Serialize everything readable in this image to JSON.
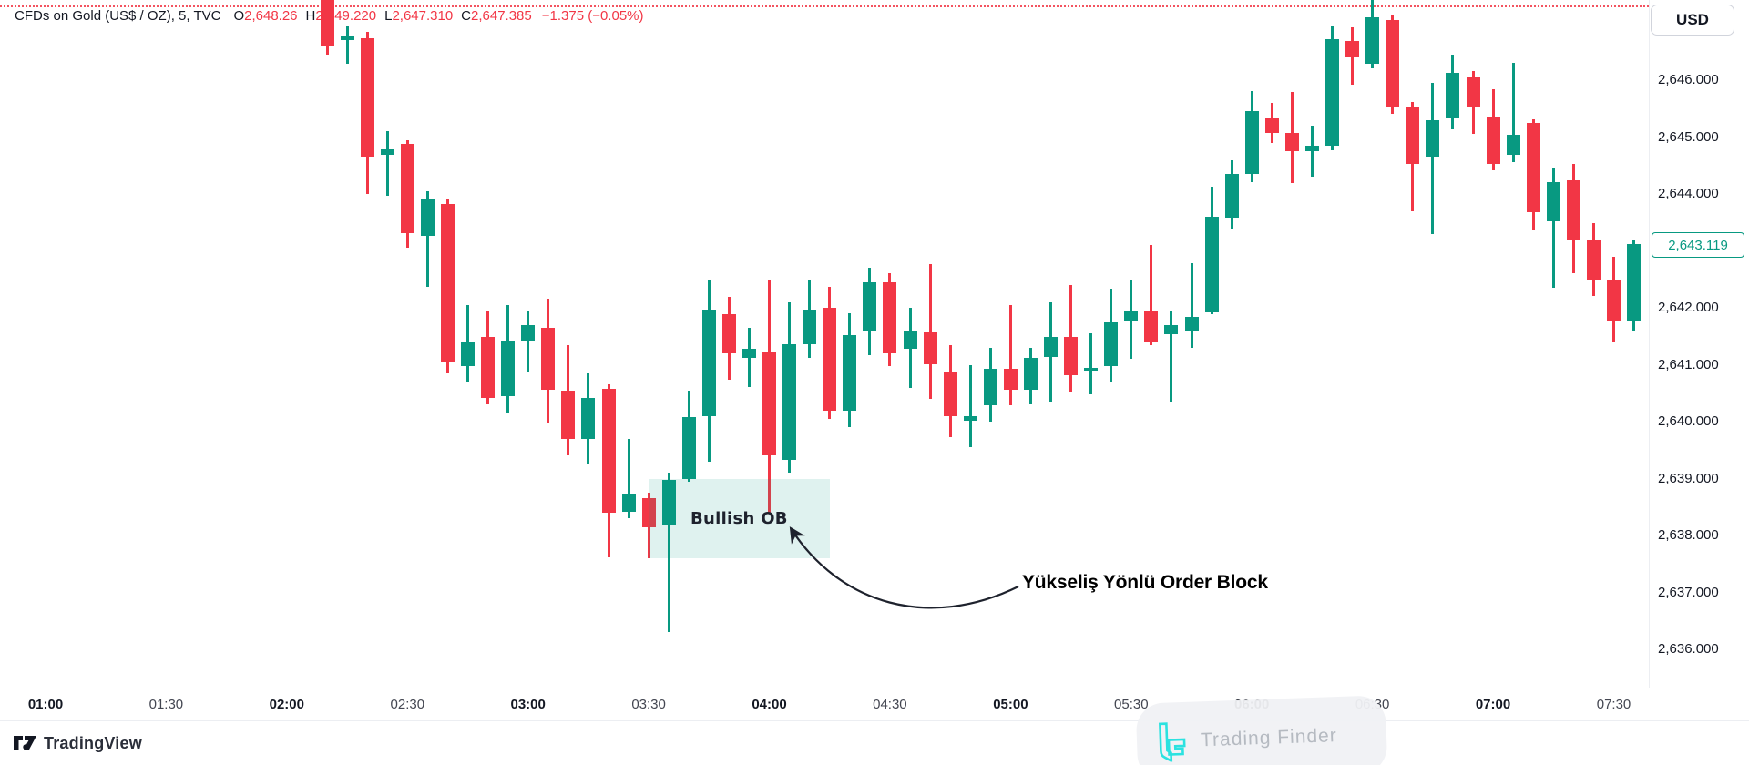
{
  "header": {
    "symbol_title": "CFDs on Gold (US$ / OZ), 5, TVC",
    "ohlc": {
      "o_label": "O",
      "o_value": "2,648.26",
      "h_label": "H",
      "h_value": "2,649.220",
      "l_label": "L",
      "l_value": "2,647.310",
      "c_label": "C",
      "c_value": "2,647.385",
      "change": "−1.375 (−0.05%)"
    }
  },
  "currency_badge": "USD",
  "price_axis": {
    "labels": [
      "2,646.000",
      "2,645.000",
      "2,644.000",
      "2,643.000",
      "2,642.000",
      "2,641.000",
      "2,640.000",
      "2,639.000",
      "2,638.000",
      "2,637.000",
      "2,636.000"
    ],
    "current_price_label": "2,643.119"
  },
  "time_axis": {
    "labels": [
      {
        "text": "01:00",
        "bold": true
      },
      {
        "text": "01:30",
        "bold": false
      },
      {
        "text": "02:00",
        "bold": true
      },
      {
        "text": "02:30",
        "bold": false
      },
      {
        "text": "03:00",
        "bold": true
      },
      {
        "text": "03:30",
        "bold": false
      },
      {
        "text": "04:00",
        "bold": true
      },
      {
        "text": "04:30",
        "bold": false
      },
      {
        "text": "05:00",
        "bold": true
      },
      {
        "text": "05:30",
        "bold": false
      },
      {
        "text": "06:00",
        "bold": true
      },
      {
        "text": "06:30",
        "bold": false
      },
      {
        "text": "07:00",
        "bold": true
      },
      {
        "text": "07:30",
        "bold": false
      }
    ]
  },
  "annotations": {
    "callout_text": "Yükseliş Yönlü Order Block"
  },
  "footer": {
    "tradingview_label": "TradingView"
  },
  "watermark": {
    "text": "Trading Finder",
    "logo_color": "#2be2e0"
  },
  "colors": {
    "up": "#089981",
    "down": "#f23645",
    "reference_line": "#f23645",
    "current_price": "#089981",
    "order_block_fill": "rgba(8,153,129,0.13)"
  },
  "chart_data": {
    "type": "candlestick",
    "title": "CFDs on Gold (US$ / OZ), 5, TVC",
    "interval_minutes": 5,
    "ylabel": "USD",
    "ylim": [
      2635.3,
      2647.4
    ],
    "grid": false,
    "current_price": 2643.119,
    "reference_line": {
      "price": 2647.31,
      "style": "dotted"
    },
    "order_block": {
      "label": "Bullish OB",
      "t_start": "03:30",
      "t_end": "04:15",
      "price_top": 2639.0,
      "price_bottom": 2637.6
    },
    "candles": [
      [
        "02:10",
        2648.3,
        2649.0,
        2646.45,
        2646.6
      ],
      [
        "02:15",
        2646.7,
        2646.95,
        2646.28,
        2646.77
      ],
      [
        "02:20",
        2646.74,
        2646.85,
        2644.0,
        2644.65
      ],
      [
        "02:25",
        2644.68,
        2645.1,
        2643.97,
        2644.78
      ],
      [
        "02:30",
        2644.88,
        2644.95,
        2643.05,
        2643.32
      ],
      [
        "02:35",
        2643.26,
        2644.05,
        2642.36,
        2643.9
      ],
      [
        "02:40",
        2643.82,
        2643.92,
        2640.85,
        2641.05
      ],
      [
        "02:45",
        2640.97,
        2642.05,
        2640.7,
        2641.4
      ],
      [
        "02:50",
        2641.49,
        2641.96,
        2640.3,
        2640.42
      ],
      [
        "02:55",
        2640.45,
        2642.05,
        2640.15,
        2641.42
      ],
      [
        "03:00",
        2641.42,
        2641.95,
        2640.88,
        2641.7
      ],
      [
        "03:05",
        2641.65,
        2642.16,
        2639.97,
        2640.56
      ],
      [
        "03:10",
        2640.54,
        2641.35,
        2639.4,
        2639.7
      ],
      [
        "03:15",
        2639.69,
        2640.85,
        2639.26,
        2640.41
      ],
      [
        "03:20",
        2640.58,
        2640.66,
        2637.61,
        2638.4
      ],
      [
        "03:25",
        2638.41,
        2639.7,
        2638.3,
        2638.73
      ],
      [
        "03:30",
        2638.66,
        2638.76,
        2637.6,
        2638.15
      ],
      [
        "03:35",
        2638.17,
        2639.1,
        2636.3,
        2638.98
      ],
      [
        "03:40",
        2639.0,
        2640.55,
        2638.95,
        2640.08
      ],
      [
        "03:45",
        2640.1,
        2642.5,
        2639.3,
        2641.97
      ],
      [
        "03:50",
        2641.89,
        2642.2,
        2640.74,
        2641.2
      ],
      [
        "03:55",
        2641.12,
        2641.65,
        2640.6,
        2641.28
      ],
      [
        "04:00",
        2641.22,
        2642.5,
        2638.4,
        2639.4
      ],
      [
        "04:05",
        2639.33,
        2642.1,
        2639.1,
        2641.36
      ],
      [
        "04:10",
        2641.36,
        2642.5,
        2641.12,
        2641.97
      ],
      [
        "04:15",
        2642.0,
        2642.37,
        2640.05,
        2640.19
      ],
      [
        "04:20",
        2640.19,
        2641.9,
        2639.9,
        2641.52
      ],
      [
        "04:25",
        2641.6,
        2642.7,
        2641.17,
        2642.45
      ],
      [
        "04:30",
        2642.45,
        2642.61,
        2640.98,
        2641.2
      ],
      [
        "04:35",
        2641.28,
        2642.0,
        2640.6,
        2641.6
      ],
      [
        "04:40",
        2641.57,
        2642.77,
        2640.4,
        2641.0
      ],
      [
        "04:45",
        2640.88,
        2641.35,
        2639.73,
        2640.1
      ],
      [
        "04:50",
        2640.02,
        2641.0,
        2639.55,
        2640.1
      ],
      [
        "04:55",
        2640.29,
        2641.3,
        2640.0,
        2640.93
      ],
      [
        "05:00",
        2640.93,
        2642.05,
        2640.28,
        2640.56
      ],
      [
        "05:05",
        2640.56,
        2641.3,
        2640.3,
        2641.12
      ],
      [
        "05:10",
        2641.14,
        2642.1,
        2640.35,
        2641.49
      ],
      [
        "05:15",
        2641.49,
        2642.4,
        2640.53,
        2640.82
      ],
      [
        "05:20",
        2640.92,
        2641.55,
        2640.48,
        2640.95
      ],
      [
        "05:25",
        2640.98,
        2642.34,
        2640.69,
        2641.74
      ],
      [
        "05:30",
        2641.78,
        2642.5,
        2641.1,
        2641.94
      ],
      [
        "05:35",
        2641.94,
        2643.1,
        2641.35,
        2641.4
      ],
      [
        "05:40",
        2641.53,
        2641.95,
        2640.35,
        2641.7
      ],
      [
        "05:45",
        2641.6,
        2642.78,
        2641.3,
        2641.84
      ],
      [
        "05:50",
        2641.92,
        2644.13,
        2641.88,
        2643.6
      ],
      [
        "05:55",
        2643.58,
        2644.6,
        2643.4,
        2644.35
      ],
      [
        "06:00",
        2644.35,
        2645.81,
        2644.2,
        2645.46
      ],
      [
        "06:05",
        2645.33,
        2645.6,
        2644.9,
        2645.07
      ],
      [
        "06:10",
        2645.07,
        2645.8,
        2644.2,
        2644.75
      ],
      [
        "06:15",
        2644.75,
        2645.2,
        2644.3,
        2644.85
      ],
      [
        "06:20",
        2644.85,
        2646.95,
        2644.77,
        2646.72
      ],
      [
        "06:25",
        2646.69,
        2646.93,
        2645.92,
        2646.4
      ],
      [
        "06:30",
        2646.29,
        2647.41,
        2646.21,
        2647.1
      ],
      [
        "06:35",
        2647.06,
        2647.15,
        2645.41,
        2645.54
      ],
      [
        "06:40",
        2645.54,
        2645.62,
        2643.7,
        2644.53
      ],
      [
        "06:45",
        2644.66,
        2645.95,
        2643.3,
        2645.3
      ],
      [
        "06:50",
        2645.33,
        2646.45,
        2645.14,
        2646.13
      ],
      [
        "06:55",
        2646.05,
        2646.16,
        2645.06,
        2645.52
      ],
      [
        "07:00",
        2645.36,
        2645.84,
        2644.42,
        2644.53
      ],
      [
        "07:05",
        2644.69,
        2646.3,
        2644.56,
        2645.04
      ],
      [
        "07:10",
        2645.25,
        2645.32,
        2643.36,
        2643.68
      ],
      [
        "07:15",
        2643.52,
        2644.45,
        2642.35,
        2644.21
      ],
      [
        "07:20",
        2644.24,
        2644.53,
        2642.61,
        2643.18
      ],
      [
        "07:25",
        2643.18,
        2643.49,
        2642.21,
        2642.5
      ],
      [
        "07:30",
        2642.5,
        2642.9,
        2641.4,
        2641.78
      ],
      [
        "07:35",
        2641.78,
        2643.2,
        2641.6,
        2643.119
      ]
    ]
  }
}
